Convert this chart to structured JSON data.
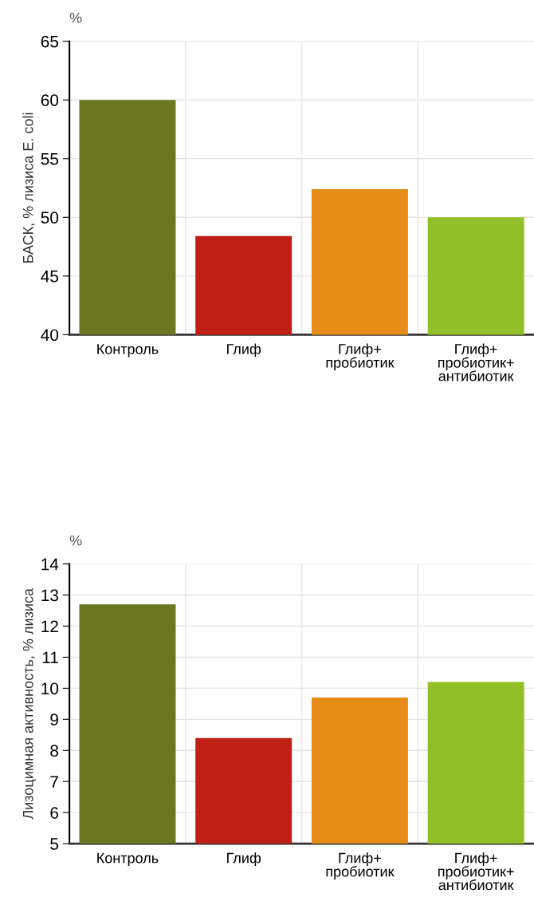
{
  "chart_data": [
    {
      "type": "bar",
      "ylabel": "БАСК, % лизиса E. coli",
      "annotations": [
        "%"
      ],
      "categories": [
        "Контроль",
        "Глиф",
        "Глиф+\nпробиотик",
        "Глиф+\nпробиотик+\nантибиотик"
      ],
      "values": [
        60,
        48.4,
        52.4,
        50
      ],
      "colors": [
        "#6b7720",
        "#bf2015",
        "#e68c17",
        "#92bf27"
      ],
      "ylim": [
        40,
        65
      ],
      "yticks": [
        40,
        45,
        50,
        55,
        60,
        65
      ],
      "grid": true
    },
    {
      "type": "bar",
      "ylabel": "Лизоцимная активность, % лизиса",
      "annotations": [
        "%"
      ],
      "categories": [
        "Контроль",
        "Глиф",
        "Глиф+\nпробиотик",
        "Глиф+\nпробиотик+\nантибиотик"
      ],
      "values": [
        12.7,
        8.4,
        9.7,
        10.2
      ],
      "colors": [
        "#6b7720",
        "#bf2015",
        "#e68c17",
        "#92bf27"
      ],
      "ylim": [
        5,
        14
      ],
      "yticks": [
        5,
        6,
        7,
        8,
        9,
        10,
        11,
        12,
        13,
        14
      ],
      "grid": true
    }
  ]
}
